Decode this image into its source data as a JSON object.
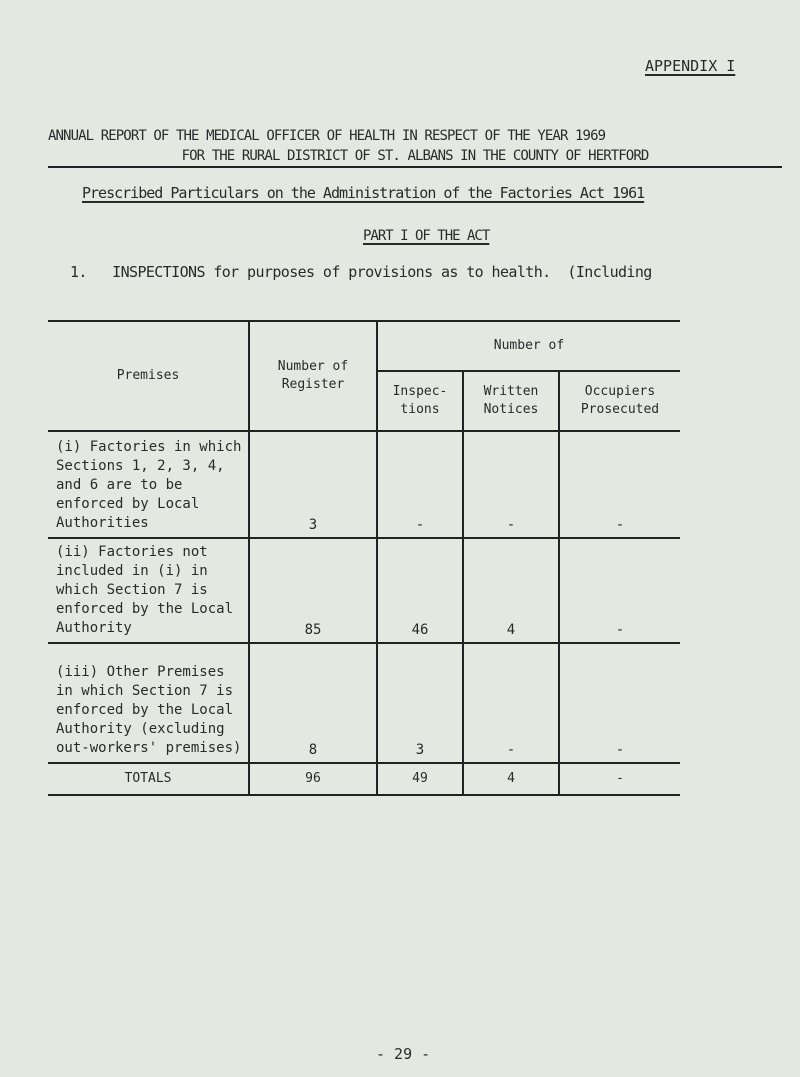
{
  "appendix": "APPENDIX I",
  "title_line1": "ANNUAL REPORT OF THE MEDICAL OFFICER OF HEALTH IN RESPECT OF THE YEAR 1969",
  "title_line2": "FOR THE RURAL DISTRICT OF ST. ALBANS IN THE COUNTY OF HERTFORD",
  "subtitle": "Prescribed Particulars on the Administration of the Factories Act 1961",
  "part": "PART I OF THE ACT",
  "section": "1.   INSPECTIONS for purposes of provisions as to health.  (Including",
  "table": {
    "headers": {
      "premises": "Premises",
      "register": "Number of Register",
      "number_of": "Number of",
      "inspections": "Inspec- tions",
      "notices": "Written Notices",
      "prosecuted": "Occupiers Prosecuted"
    },
    "rows": [
      {
        "premises": "(i) Factories in which Sections 1, 2, 3, 4, and 6 are to be enforced by Local Authorities",
        "register": "3",
        "inspections": "-",
        "notices": "-",
        "prosecuted": "-"
      },
      {
        "premises": "(ii) Factories not included in (i) in which Section 7 is enforced by the Local Authority",
        "register": "85",
        "inspections": "46",
        "notices": "4",
        "prosecuted": "-"
      },
      {
        "premises": "(iii) Other Premises in which Section 7 is enforced by the Local Authority (excluding out-workers' premises)",
        "register": "8",
        "inspections": "3",
        "notices": "-",
        "prosecuted": "-"
      }
    ],
    "totals": {
      "label": "TOTALS",
      "register": "96",
      "inspections": "49",
      "notices": "4",
      "prosecuted": "-"
    }
  },
  "page_number": "- 29 -"
}
